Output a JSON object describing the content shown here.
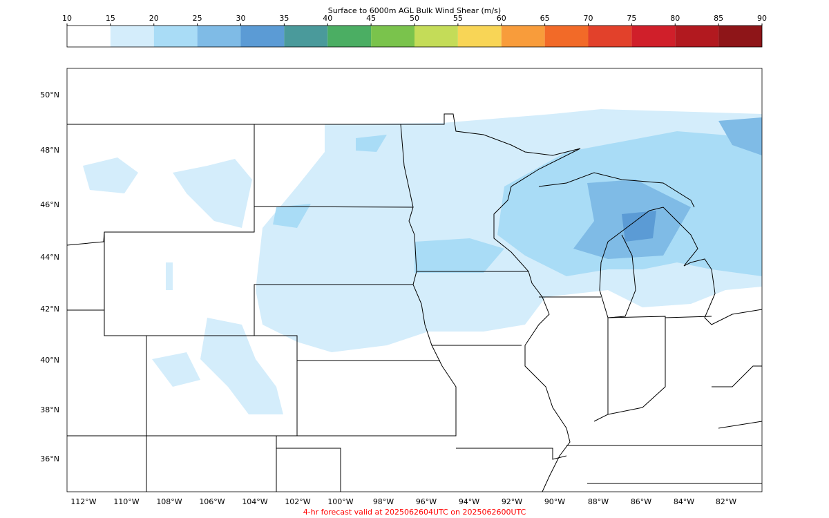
{
  "colorbar": {
    "title": "Surface to 6000m AGL Bulk Wind Shear (m/s)",
    "ticks": [
      10,
      15,
      20,
      25,
      30,
      35,
      40,
      45,
      50,
      55,
      60,
      65,
      70,
      75,
      80,
      85,
      90
    ],
    "colors": [
      "#ffffff",
      "#d4edfb",
      "#a9dcf6",
      "#7fbbe6",
      "#5b9bd5",
      "#4a9a9b",
      "#4bae63",
      "#7ac34c",
      "#c4dc58",
      "#f8d556",
      "#f89c3b",
      "#f26a28",
      "#e2412b",
      "#d01f2a",
      "#b2191f",
      "#8e1518"
    ]
  },
  "lat_labels": [
    "50°N",
    "48°N",
    "46°N",
    "44°N",
    "42°N",
    "40°N",
    "38°N",
    "36°N"
  ],
  "lon_labels": [
    "112°W",
    "110°W",
    "108°W",
    "106°W",
    "104°W",
    "102°W",
    "100°W",
    "98°W",
    "96°W",
    "94°W",
    "92°W",
    "90°W",
    "88°W",
    "86°W",
    "84°W",
    "82°W"
  ],
  "footer": "4-hr forecast valid at 2025062604UTC on 2025062600UTC"
}
